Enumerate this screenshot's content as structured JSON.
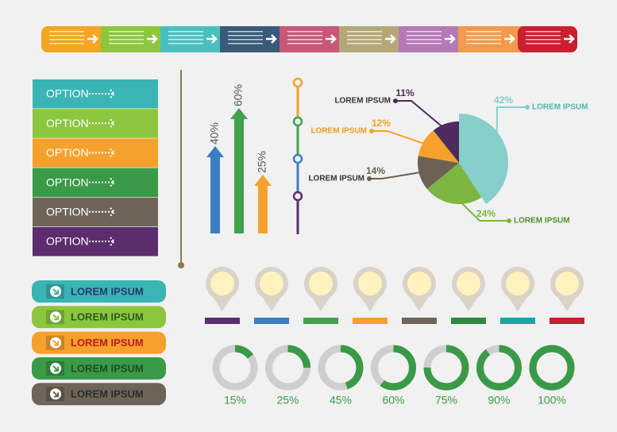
{
  "options": [
    "OPTION",
    "OPTION",
    "OPTION",
    "OPTION",
    "OPTION",
    "OPTION"
  ],
  "tags": [
    "LOREM IPSUM",
    "LOREM IPSUM",
    "LOREM IPSUM",
    "LOREM IPSUM",
    "LOREM IPSUM"
  ],
  "arrow_chart": {
    "values": [
      40,
      60,
      25
    ],
    "value_labels": [
      "40%",
      "60%",
      "25%"
    ],
    "colors": [
      "#3a7fc1",
      "#3fa34d",
      "#f7a12d"
    ]
  },
  "pie_chart": {
    "slices": [
      {
        "label": "LOREM IPSUM",
        "value": 42,
        "value_label": "42%",
        "color": "#86cfcb"
      },
      {
        "label": "LOREM IPSUM",
        "value": 24,
        "value_label": "24%",
        "color": "#7db642"
      },
      {
        "label": "LOREM IPSUM",
        "value": 14,
        "value_label": "14%",
        "color": "#6b6154"
      },
      {
        "label": "LOREM IPSUM",
        "value": 12,
        "value_label": "12%",
        "color": "#f7a12d"
      },
      {
        "label": "LOREM IPSUM",
        "value": 11,
        "value_label": "11%",
        "color": "#4e2a5e"
      }
    ]
  },
  "donut_chart": {
    "values": [
      15,
      25,
      45,
      60,
      75,
      90,
      100
    ],
    "value_labels": [
      "15%",
      "25%",
      "45%",
      "60%",
      "75%",
      "90%",
      "100%"
    ]
  }
}
